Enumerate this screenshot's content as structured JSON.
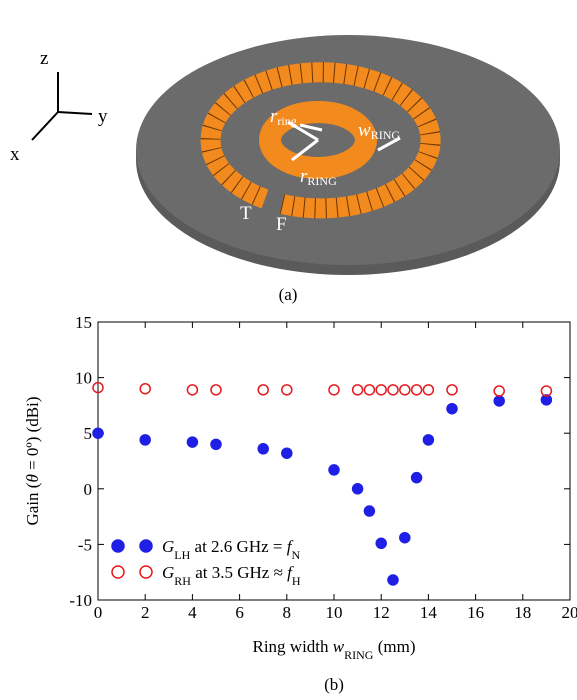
{
  "figure_a": {
    "caption": "(a)",
    "axes": {
      "z": "z",
      "y": "y",
      "x": "x"
    },
    "labels": {
      "r_ring": {
        "symbol": "r",
        "subscript": "ring"
      },
      "w_ring": {
        "symbol": "w",
        "subscript": "RING"
      },
      "r_RING": {
        "symbol": "r",
        "subscript": "RING"
      },
      "T": "T",
      "F": "F"
    }
  },
  "chart_data": {
    "type": "scatter",
    "caption": "(b)",
    "x_label": [
      {
        "text": "Ring width ",
        "style": "normal"
      },
      {
        "text": "w",
        "style": "italic"
      },
      {
        "text": "RING",
        "style": "sub"
      },
      {
        "text": " (mm)",
        "style": "normal"
      }
    ],
    "y_label": [
      {
        "text": "Gain (",
        "style": "normal"
      },
      {
        "text": "θ",
        "style": "italic"
      },
      {
        "text": " = 0º) (dBi)",
        "style": "normal"
      }
    ],
    "x": [
      0,
      2,
      4,
      5,
      7,
      8,
      10,
      11,
      11.5,
      12,
      12.5,
      13,
      13.5,
      14,
      15,
      17,
      19
    ],
    "series": [
      {
        "name": [
          {
            "text": "G",
            "style": "italic"
          },
          {
            "text": "LH",
            "style": "sub"
          },
          {
            "text": " at 2.6 GHz = ",
            "style": "normal"
          },
          {
            "text": "f",
            "style": "italic"
          },
          {
            "text": "N",
            "style": "sub"
          }
        ],
        "color": "#1f1fe6",
        "marker": "filled",
        "values": [
          5.0,
          4.4,
          4.2,
          4.0,
          3.6,
          3.2,
          1.7,
          0.0,
          -2.0,
          -4.9,
          -8.2,
          -4.4,
          1.0,
          4.4,
          7.2,
          7.9,
          8.0
        ]
      },
      {
        "name": [
          {
            "text": "G",
            "style": "italic"
          },
          {
            "text": "RH",
            "style": "sub"
          },
          {
            "text": " at 3.5 GHz ≈ ",
            "style": "normal"
          },
          {
            "text": "f",
            "style": "italic"
          },
          {
            "text": "H",
            "style": "sub"
          }
        ],
        "color": "#e6191e",
        "marker": "open",
        "values": [
          9.1,
          9.0,
          8.9,
          8.9,
          8.9,
          8.9,
          8.9,
          8.9,
          8.9,
          8.9,
          8.9,
          8.9,
          8.9,
          8.9,
          8.9,
          8.8,
          8.8
        ]
      }
    ],
    "xlim": [
      0,
      20
    ],
    "xticks": [
      0,
      2,
      4,
      6,
      8,
      10,
      12,
      14,
      16,
      18,
      20
    ],
    "ylim": [
      -10,
      15
    ],
    "yticks": [
      -10,
      -5,
      0,
      5,
      10,
      15
    ]
  }
}
